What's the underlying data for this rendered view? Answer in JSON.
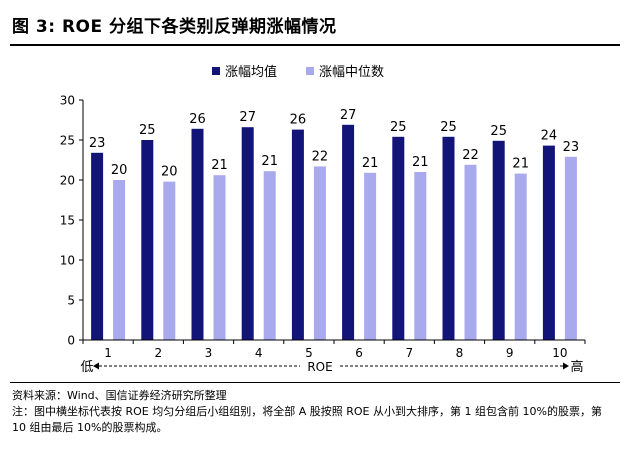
{
  "title": "图 3:  ROE 分组下各类别反弹期涨幅情况",
  "source": "资料来源：Wind、国信证券经济研究所整理",
  "note": "注：图中横坐标代表按 ROE 均匀分组后小组组别，将全部 A 股按照 ROE 从小到大排序，第 1 组包含前 10%的股票，第 10 组由最后 10%的股票构成。",
  "chart_data": {
    "type": "bar",
    "categories": [
      "1",
      "2",
      "3",
      "4",
      "5",
      "6",
      "7",
      "8",
      "9",
      "10"
    ],
    "series": [
      {
        "name": "涨幅均值",
        "values": [
          23.4,
          25.0,
          26.4,
          26.6,
          26.3,
          26.9,
          25.4,
          25.4,
          24.9,
          24.3
        ],
        "labels": [
          "23",
          "25",
          "26",
          "27",
          "26",
          "27",
          "25",
          "25",
          "25",
          "24"
        ],
        "color": "#131477"
      },
      {
        "name": "涨幅中位数",
        "values": [
          20.0,
          19.8,
          20.6,
          21.1,
          21.7,
          20.9,
          21.0,
          21.9,
          20.8,
          22.9
        ],
        "labels": [
          "20",
          "20",
          "21",
          "21",
          "22",
          "21",
          "21",
          "22",
          "21",
          "23"
        ],
        "color": "#a9a9ee"
      }
    ],
    "xlabel": "ROE",
    "x_low_label": "低",
    "x_high_label": "高",
    "ylim": [
      0,
      30
    ],
    "yticks": [
      0,
      5,
      10,
      15,
      20,
      25,
      30
    ],
    "legend_position": "top-center",
    "grid": false
  }
}
